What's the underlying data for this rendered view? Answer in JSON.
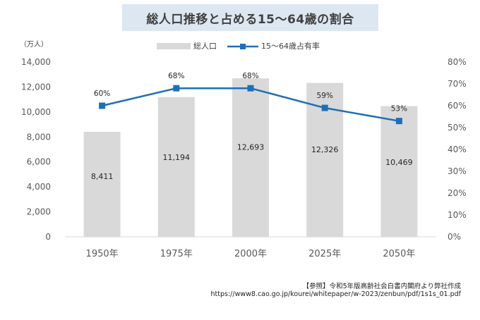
{
  "chart_data": {
    "type": "bar+line",
    "title": "総人口推移と占める15～64歳の割合",
    "y_left_unit": "（万人）",
    "categories": [
      "1950年",
      "1975年",
      "2000年",
      "2025年",
      "2050年"
    ],
    "series": [
      {
        "name": "総人口",
        "type": "bar",
        "axis": "left",
        "values": [
          8411,
          11194,
          12693,
          12326,
          10469
        ],
        "labels": [
          "8,411",
          "11,194",
          "12,693",
          "12,326",
          "10,469"
        ]
      },
      {
        "name": "15～64歳占有率",
        "type": "line",
        "axis": "right",
        "values": [
          60,
          68,
          68,
          59,
          53
        ],
        "labels": [
          "60%",
          "68%",
          "68%",
          "59%",
          "53%"
        ]
      }
    ],
    "ylim_left": [
      0,
      14000
    ],
    "yticks_left": [
      "0",
      "2,000",
      "4,000",
      "6,000",
      "8,000",
      "10,000",
      "12,000",
      "14,000"
    ],
    "ylim_right": [
      0,
      80
    ],
    "yticks_right": [
      "0%",
      "10%",
      "20%",
      "30%",
      "40%",
      "50%",
      "60%",
      "70%",
      "80%"
    ],
    "legend_position": "top"
  },
  "colors": {
    "bar": "#d9d9d9",
    "line": "#1f6fb6",
    "axis_text": "#595959",
    "title_bg": "#dde7f2"
  },
  "source": {
    "line1": "【参照】令和5年版高齢社会白書内閣府より弊社作成",
    "line2": "https://www8.cao.go.jp/kourei/whitepaper/w-2023/zenbun/pdf/1s1s_01.pdf"
  }
}
